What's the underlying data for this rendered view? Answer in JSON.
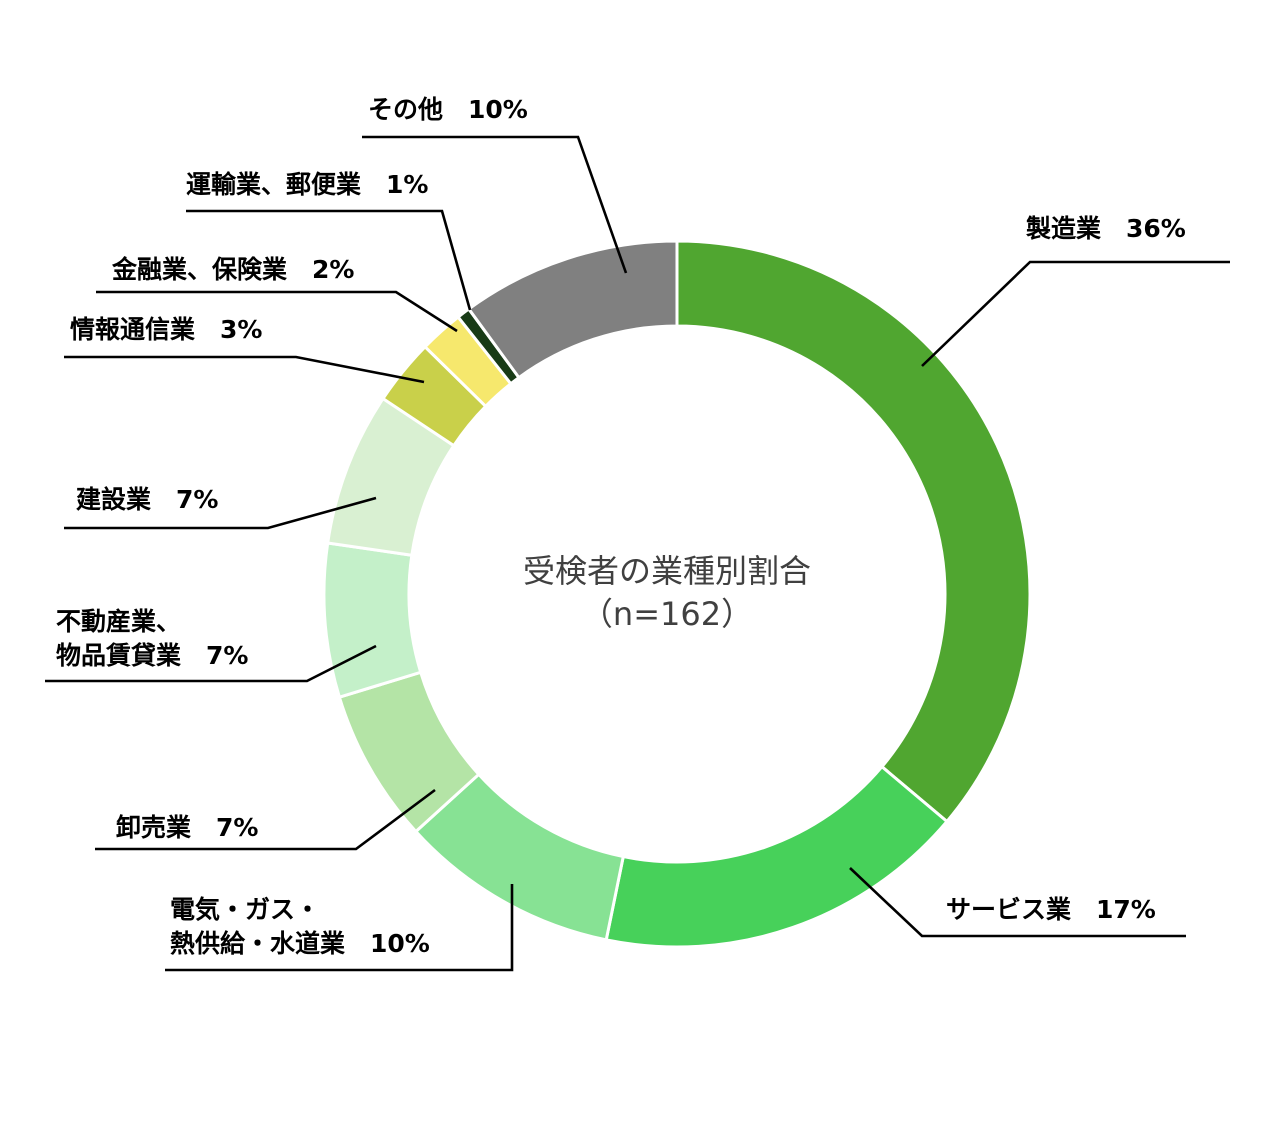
{
  "chart_data": {
    "type": "pie",
    "title": "受検者の業種別割合",
    "subtitle": "（n=162）",
    "slices": [
      {
        "label": "製造業",
        "percent_label": "36%",
        "value": 36,
        "color": "#50a630"
      },
      {
        "label": "サービス業",
        "percent_label": "17%",
        "value": 17,
        "color": "#47d15a"
      },
      {
        "label": "電気・ガス・熱供給・水道業",
        "label_lines": [
          "電気・ガス・",
          "熱供給・水道業"
        ],
        "percent_label": "10%",
        "value": 10,
        "color": "#87e294"
      },
      {
        "label": "卸売業",
        "percent_label": "7%",
        "value": 7,
        "color": "#b4e4a6"
      },
      {
        "label": "不動産業、物品賃貸業",
        "label_lines": [
          "不動産業、",
          "物品賃貸業"
        ],
        "percent_label": "7%",
        "value": 7,
        "color": "#c4f0c9"
      },
      {
        "label": "建設業",
        "percent_label": "7%",
        "value": 7,
        "color": "#d9f0d2"
      },
      {
        "label": "情報通信業",
        "percent_label": "3%",
        "value": 3,
        "color": "#c9d04a"
      },
      {
        "label": "金融業、保険業",
        "percent_label": "2%",
        "value": 2,
        "color": "#f6e86d"
      },
      {
        "label": "運輸業、郵便業",
        "percent_label": "1%",
        "value": 0.6,
        "color": "#183b16"
      },
      {
        "label": "その他",
        "percent_label": "10%",
        "value": 10,
        "color": "#808080"
      }
    ],
    "legend": "none"
  }
}
